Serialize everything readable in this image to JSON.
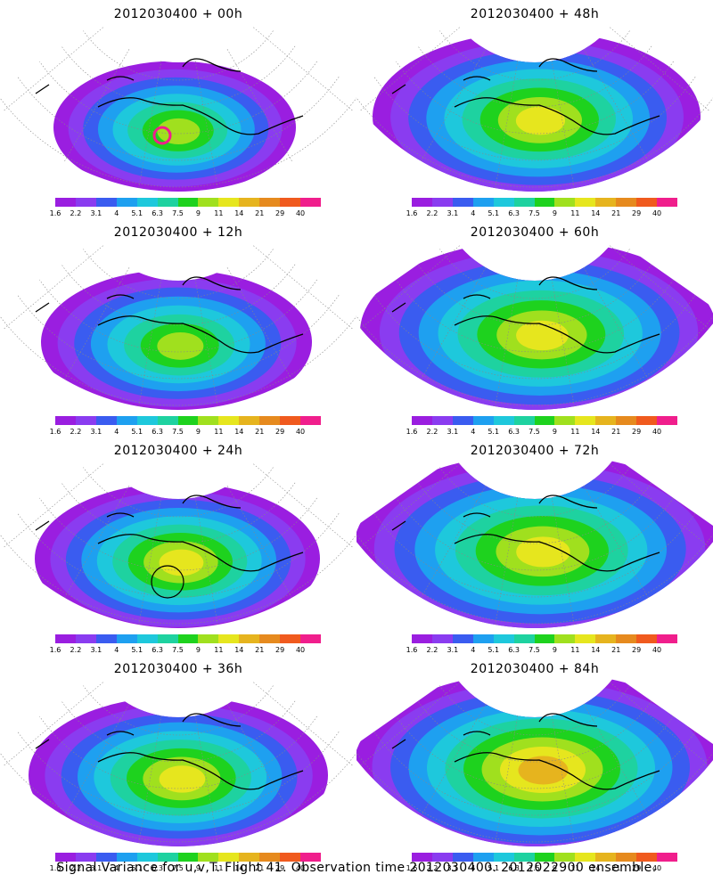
{
  "chart_data": {
    "type": "heatmap",
    "caption": "Signal Variance for u,v,T. Flight 41. Observation time 2012030400. 2012022900 ensemble.",
    "colorbar": {
      "tick_labels": [
        "1.6",
        "2.2",
        "3.1",
        "4",
        "5.1",
        "6.3",
        "7.5",
        "9",
        "11",
        "14",
        "21",
        "29",
        "40"
      ],
      "colors": [
        "#9a1ee0",
        "#8a3cf0",
        "#3a5cf0",
        "#1ea0f0",
        "#1ec8dc",
        "#1ed2a0",
        "#1ed21e",
        "#a0e01e",
        "#e6e61e",
        "#e6b41e",
        "#e68a1e",
        "#f05a1e",
        "#f01e8c"
      ]
    },
    "panels": [
      {
        "title": "2012030400 + 00h",
        "spread": 0.55,
        "intensity": 0.55,
        "marker": "magenta-circle"
      },
      {
        "title": "2012030400 + 48h",
        "spread": 0.85,
        "intensity": 0.7,
        "marker": ""
      },
      {
        "title": "2012030400 + 12h",
        "spread": 0.65,
        "intensity": 0.6,
        "marker": ""
      },
      {
        "title": "2012030400 + 60h",
        "spread": 0.95,
        "intensity": 0.7,
        "marker": ""
      },
      {
        "title": "2012030400 + 24h",
        "spread": 0.7,
        "intensity": 0.65,
        "marker": "black-circle"
      },
      {
        "title": "2012030400 + 72h",
        "spread": 1.0,
        "intensity": 0.75,
        "marker": ""
      },
      {
        "title": "2012030400 + 36h",
        "spread": 0.75,
        "intensity": 0.68,
        "marker": ""
      },
      {
        "title": "2012030400 + 84h",
        "spread": 1.0,
        "intensity": 0.8,
        "marker": ""
      }
    ]
  }
}
